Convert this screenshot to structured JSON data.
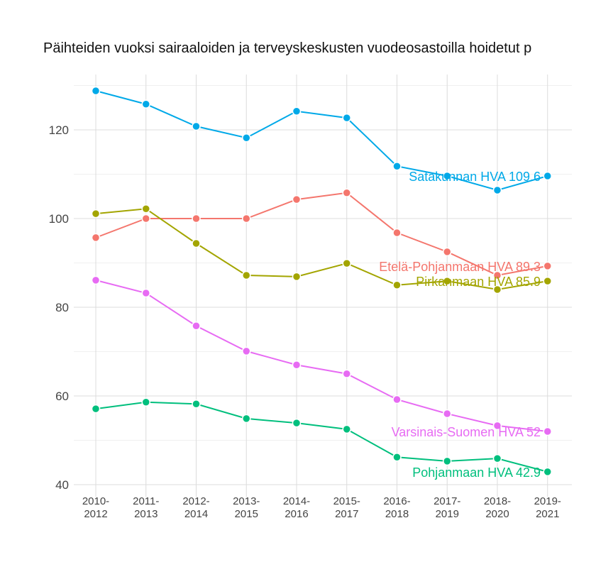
{
  "chart_data": {
    "type": "line",
    "title": "Päihteiden vuoksi sairaaloiden ja terveyskeskusten vuodeosastoilla hoidetut p",
    "xlabel": "",
    "ylabel": "",
    "categories": [
      "2010-\n2012",
      "2011-\n2013",
      "2012-\n2014",
      "2013-\n2015",
      "2014-\n2016",
      "2015-\n2017",
      "2016-\n2018",
      "2017-\n2019",
      "2018-\n2020",
      "2019-\n2021"
    ],
    "ylim": [
      40,
      132
    ],
    "yticks": [
      40,
      60,
      80,
      100,
      120
    ],
    "grid": true,
    "legend": "none (end-of-line labels)",
    "series": [
      {
        "name": "Satakunnan HVA",
        "end_label": "Satakunnan HVA 109.6",
        "color": "#00A9E8",
        "values": [
          128.8,
          125.8,
          120.8,
          118.2,
          124.2,
          122.7,
          111.8,
          109.6,
          106.4,
          109.6
        ]
      },
      {
        "name": "Etelä-Pohjanmaan HVA",
        "end_label": "Etelä-Pohjanmaan HVA 89.3",
        "color": "#F4766D",
        "values": [
          95.7,
          100,
          100,
          100,
          104.3,
          105.8,
          96.8,
          92.5,
          87.2,
          89.3
        ]
      },
      {
        "name": "Pirkanmaan HVA",
        "end_label": "Pirkanmaan HVA 85.9",
        "color": "#A3A500",
        "values": [
          101.1,
          102.2,
          94.4,
          87.2,
          86.9,
          89.9,
          85.0,
          85.9,
          84.0,
          85.9
        ]
      },
      {
        "name": "Varsinais-Suomen HVA",
        "end_label": "Varsinais-Suomen HVA 52",
        "color": "#E76BF3",
        "values": [
          86.1,
          83.2,
          75.8,
          70.1,
          67.0,
          65.0,
          59.2,
          56.0,
          53.3,
          52
        ]
      },
      {
        "name": "Pohjanmaan HVA",
        "end_label": "Pohjanmaan HVA 42.9",
        "color": "#00BF7D",
        "values": [
          57.1,
          58.6,
          58.2,
          54.9,
          53.9,
          52.5,
          46.2,
          45.3,
          45.9,
          42.9
        ]
      }
    ]
  }
}
